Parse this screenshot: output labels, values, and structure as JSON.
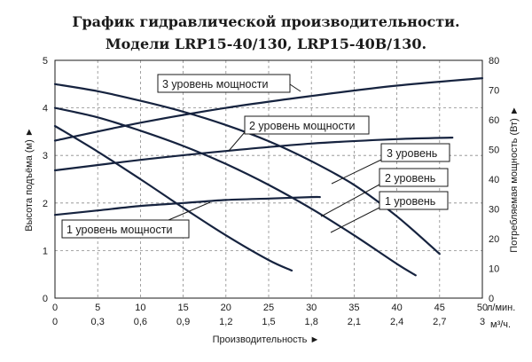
{
  "chart_data": {
    "type": "line",
    "title": [
      "График гидравлической производительности.",
      "Модели LRP15-40/130, LRP15-40B/130."
    ],
    "xlabel": "Производительность ►",
    "ylabel_left": "Высота подъёма (м) ►",
    "ylabel_right": "Потребляемая мощность (Вт) ►",
    "x_unit_primary": "л/мин.",
    "x_unit_secondary": "м³/ч.",
    "x_ticks": [
      "0",
      "5",
      "10",
      "15",
      "20",
      "25",
      "30",
      "35",
      "40",
      "45",
      "50"
    ],
    "x_ticks_secondary": [
      "0",
      "0,3",
      "0,6",
      "0,9",
      "1,2",
      "1,5",
      "1,8",
      "2,1",
      "2,4",
      "2,7",
      "3"
    ],
    "y_ticks_left": [
      "0",
      "1",
      "2",
      "3",
      "4",
      "5"
    ],
    "y_ticks_right": [
      "0",
      "10",
      "20",
      "30",
      "40",
      "50",
      "60",
      "70",
      "80"
    ],
    "xlim": [
      0,
      50
    ],
    "ylim_left": [
      0,
      5
    ],
    "ylim_right": [
      0,
      80
    ],
    "grid": true,
    "colors": {
      "curve": "#16233f",
      "grid": "#8a8a8a"
    },
    "head_series": [
      {
        "name": "1 уровень",
        "x": [
          0,
          5,
          10,
          15,
          20,
          25,
          27.7
        ],
        "y": [
          3.62,
          3.08,
          2.5,
          1.9,
          1.32,
          0.8,
          0.58
        ]
      },
      {
        "name": "2 уровень",
        "x": [
          0,
          5,
          10,
          15,
          20,
          25,
          30,
          35,
          40,
          42.2
        ],
        "y": [
          4.0,
          3.8,
          3.52,
          3.2,
          2.82,
          2.38,
          1.88,
          1.32,
          0.72,
          0.48
        ]
      },
      {
        "name": "3 уровень",
        "x": [
          0,
          5,
          10,
          15,
          20,
          25,
          30,
          35,
          40,
          45
        ],
        "y": [
          4.5,
          4.35,
          4.15,
          3.92,
          3.64,
          3.3,
          2.88,
          2.38,
          1.72,
          0.93
        ]
      }
    ],
    "power_series": [
      {
        "name": "1 уровень мощности",
        "x": [
          0,
          5,
          10,
          15,
          20,
          25,
          30,
          31
        ],
        "y": [
          28,
          29.5,
          31,
          32,
          33,
          33.5,
          34,
          34
        ]
      },
      {
        "name": "2 уровень мощности",
        "x": [
          0,
          10,
          20,
          30,
          40,
          46.5
        ],
        "y": [
          43,
          46.5,
          49.5,
          52,
          53.5,
          54
        ]
      },
      {
        "name": "3 уровень мощности",
        "x": [
          0,
          10,
          20,
          30,
          40,
          50
        ],
        "y": [
          53,
          59,
          64,
          68,
          71.5,
          74
        ]
      }
    ]
  },
  "annotations": {
    "power3": "3 уровень мощности",
    "power2": "2 уровень мощности",
    "power1": "1 уровень мощности",
    "head3": "3 уровень",
    "head2": "2 уровень",
    "head1": "1 уровень"
  }
}
